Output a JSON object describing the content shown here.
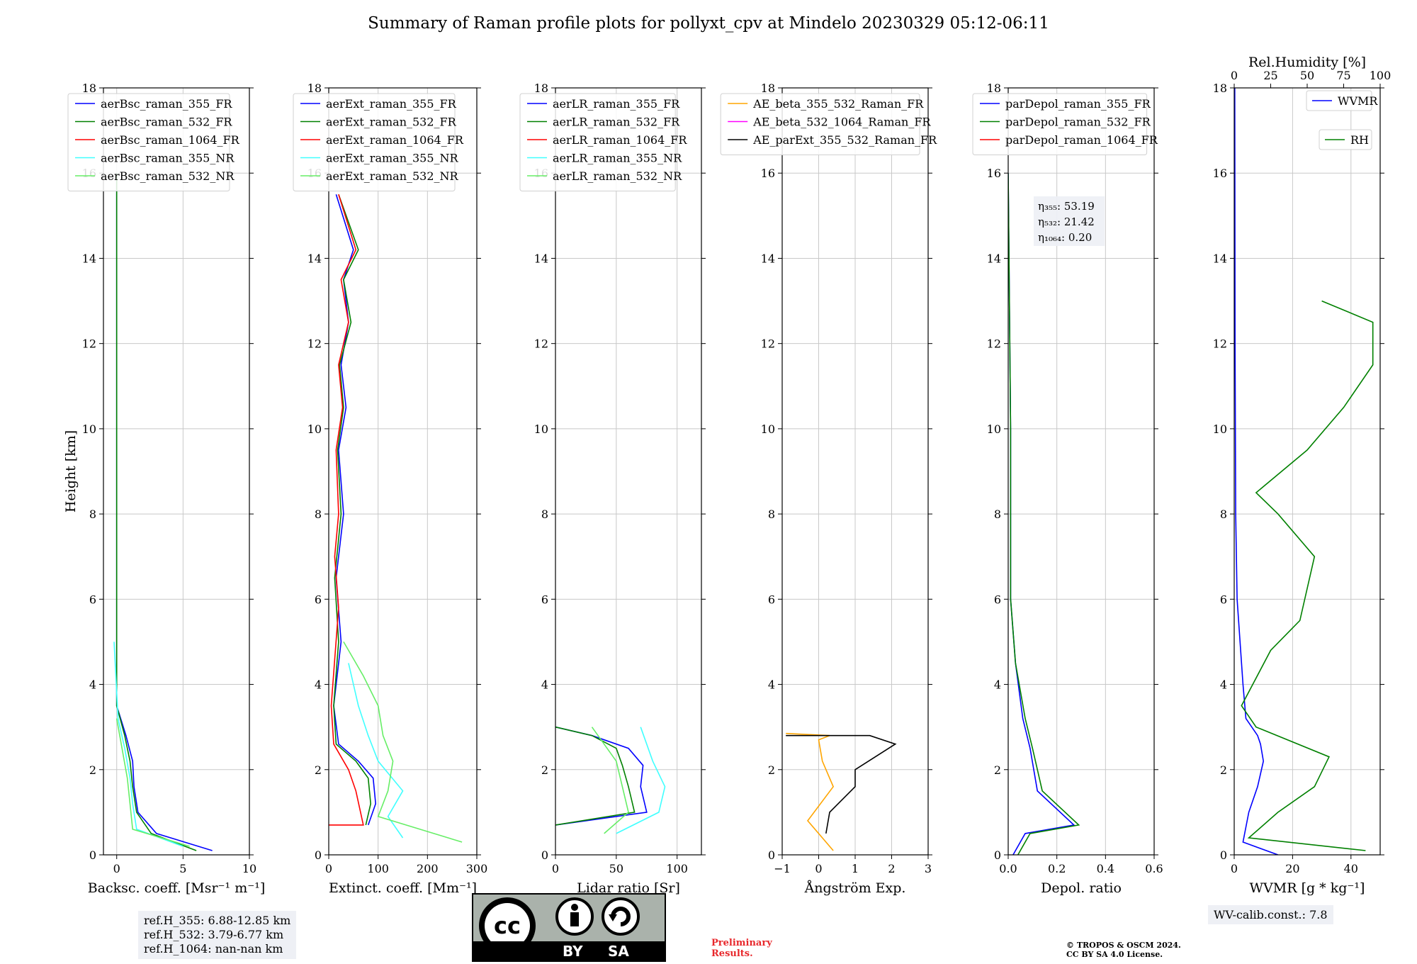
{
  "title": "Summary of Raman profile plots for pollyxt_cpv at Mindelo 20230329 05:12-06:11",
  "ref_box": [
    "ref.H_355: 6.88-12.85 km",
    "ref.H_532: 3.79-6.77 km",
    "ref.H_1064: nan-nan km"
  ],
  "wv_box": "WV-calib.const.: 7.8",
  "preliminary": [
    "Preliminary",
    "Results."
  ],
  "copyright": [
    "© TROPOS & OSCM 2024.",
    "CC BY SA 4.0 License."
  ],
  "license_logo": {
    "by": "BY",
    "sa": "SA"
  },
  "chart_data": [
    {
      "type": "line",
      "xlabel": "Backsc. coeff. [Msr⁻¹ m⁻¹]",
      "ylabel": "Height [km]",
      "xlim": [
        -1,
        10
      ],
      "ylim": [
        0,
        18
      ],
      "xticks": [
        0,
        5,
        10
      ],
      "yticks": [
        0,
        2,
        4,
        6,
        8,
        10,
        12,
        14,
        16,
        18
      ],
      "grid": true,
      "legend": "top-left",
      "series": [
        {
          "name": "aerBsc_raman_355_FR",
          "color": "#0000ff",
          "x": [
            7.2,
            3.0,
            1.6,
            1.3,
            1.2,
            0.7,
            0.0,
            0.0,
            0.0,
            0.0
          ],
          "y": [
            0.1,
            0.5,
            1.0,
            1.6,
            2.2,
            2.8,
            3.5,
            8.0,
            13.0,
            16.0
          ]
        },
        {
          "name": "aerBsc_raman_532_FR",
          "color": "#008000",
          "x": [
            6.0,
            2.6,
            1.5,
            1.2,
            1.0,
            0.6,
            0.0,
            0.0,
            0.0,
            0.0
          ],
          "y": [
            0.1,
            0.5,
            1.0,
            1.6,
            2.2,
            2.8,
            3.5,
            8.0,
            13.0,
            16.0
          ]
        },
        {
          "name": "aerBsc_raman_1064_FR",
          "color": "#ff0000",
          "x": [],
          "y": []
        },
        {
          "name": "aerBsc_raman_355_NR",
          "color": "#40ffff",
          "x": [
            5.0,
            1.5,
            1.2,
            1.0,
            0.6,
            0.1,
            -0.2
          ],
          "y": [
            0.2,
            0.6,
            1.2,
            1.8,
            2.5,
            3.2,
            5.0
          ]
        },
        {
          "name": "aerBsc_raman_532_NR",
          "color": "#66ee66",
          "x": [
            5.5,
            1.2,
            1.0,
            0.8,
            0.4,
            0.0
          ],
          "y": [
            0.2,
            0.6,
            1.2,
            1.8,
            2.5,
            3.2
          ]
        }
      ]
    },
    {
      "type": "line",
      "xlabel": "Extinct. coeff. [Mm⁻¹]",
      "xlim": [
        0,
        300
      ],
      "ylim": [
        0,
        18
      ],
      "xticks": [
        0,
        100,
        200,
        300
      ],
      "yticks": [
        0,
        2,
        4,
        6,
        8,
        10,
        12,
        14,
        16,
        18
      ],
      "grid": true,
      "legend": "top-left",
      "series": [
        {
          "name": "aerExt_raman_355_FR",
          "color": "#0000ff",
          "x": [
            80,
            95,
            90,
            60,
            20,
            10,
            25,
            15,
            30,
            20,
            35,
            25,
            40,
            30,
            50,
            15
          ],
          "y": [
            0.7,
            1.2,
            1.8,
            2.2,
            2.6,
            3.5,
            5.0,
            6.5,
            8.0,
            9.5,
            10.5,
            11.5,
            12.5,
            13.5,
            14.2,
            15.5
          ]
        },
        {
          "name": "aerExt_raman_532_FR",
          "color": "#008000",
          "x": [
            75,
            85,
            80,
            55,
            15,
            10,
            20,
            12,
            25,
            18,
            30,
            22,
            45,
            30,
            60,
            20
          ],
          "y": [
            0.7,
            1.2,
            1.8,
            2.2,
            2.6,
            3.5,
            5.0,
            6.5,
            8.0,
            9.5,
            10.5,
            11.5,
            12.5,
            13.5,
            14.2,
            15.5
          ]
        },
        {
          "name": "aerExt_raman_1064_FR",
          "color": "#ff0000",
          "x": [
            0,
            70,
            55,
            40,
            10,
            5,
            20,
            12,
            20,
            15,
            28,
            20,
            40,
            25,
            55,
            20
          ],
          "y": [
            0.7,
            0.7,
            1.5,
            2.0,
            2.6,
            3.5,
            5.8,
            7.0,
            8.0,
            9.5,
            10.5,
            11.5,
            12.5,
            13.5,
            14.2,
            15.5
          ]
        },
        {
          "name": "aerExt_raman_355_NR",
          "color": "#40ffff",
          "x": [
            150,
            120,
            150,
            100,
            80,
            60,
            40
          ],
          "y": [
            0.4,
            0.9,
            1.5,
            2.2,
            2.8,
            3.5,
            4.5
          ]
        },
        {
          "name": "aerExt_raman_532_NR",
          "color": "#66ee66",
          "x": [
            270,
            100,
            120,
            130,
            110,
            100,
            70,
            30
          ],
          "y": [
            0.3,
            0.9,
            1.5,
            2.2,
            2.8,
            3.5,
            4.2,
            5.0
          ]
        }
      ]
    },
    {
      "type": "line",
      "xlabel": "Lidar ratio [Sr]",
      "xlim": [
        0,
        120
      ],
      "ylim": [
        0,
        18
      ],
      "xticks": [
        0,
        50,
        100
      ],
      "yticks": [
        0,
        2,
        4,
        6,
        8,
        10,
        12,
        14,
        16,
        18
      ],
      "grid": true,
      "legend": "top-left",
      "series": [
        {
          "name": "aerLR_raman_355_FR",
          "color": "#0000ff",
          "x": [
            0,
            75,
            70,
            72,
            60,
            30,
            0
          ],
          "y": [
            0.7,
            1.0,
            1.6,
            2.1,
            2.5,
            2.8,
            3.0
          ]
        },
        {
          "name": "aerLR_raman_532_FR",
          "color": "#008000",
          "x": [
            0,
            65,
            60,
            55,
            50,
            30,
            0
          ],
          "y": [
            0.7,
            1.0,
            1.6,
            2.1,
            2.5,
            2.8,
            3.0
          ]
        },
        {
          "name": "aerLR_raman_1064_FR",
          "color": "#ff0000",
          "x": [],
          "y": []
        },
        {
          "name": "aerLR_raman_355_NR",
          "color": "#40ffff",
          "x": [
            50,
            85,
            90,
            80,
            70
          ],
          "y": [
            0.5,
            1.0,
            1.6,
            2.2,
            3.0
          ]
        },
        {
          "name": "aerLR_raman_532_NR",
          "color": "#66ee66",
          "x": [
            40,
            60,
            55,
            50,
            30
          ],
          "y": [
            0.5,
            1.0,
            1.6,
            2.2,
            3.0
          ]
        }
      ]
    },
    {
      "type": "line",
      "xlabel": "Ångström Exp.",
      "xlim": [
        -1,
        3
      ],
      "ylim": [
        0,
        18
      ],
      "xticks": [
        -1,
        0,
        1,
        2,
        3
      ],
      "yticks": [
        0,
        2,
        4,
        6,
        8,
        10,
        12,
        14,
        16,
        18
      ],
      "grid": true,
      "legend": "top-right",
      "series": [
        {
          "name": "AE_beta_355_532_Raman_FR",
          "color": "#ffa500",
          "x": [
            0.4,
            0.1,
            -0.3,
            0.4,
            0.1,
            0.0,
            0.3,
            -0.9
          ],
          "y": [
            0.1,
            0.4,
            0.8,
            1.6,
            2.2,
            2.7,
            2.8,
            2.85
          ]
        },
        {
          "name": "AE_beta_532_1064_Raman_FR",
          "color": "#ff00ff",
          "x": [],
          "y": []
        },
        {
          "name": "AE_parExt_355_532_Raman_FR",
          "color": "#000000",
          "x": [
            0.2,
            0.3,
            1.0,
            1.0,
            2.1,
            1.4,
            -0.9
          ],
          "y": [
            0.5,
            1.0,
            1.6,
            2.0,
            2.6,
            2.8,
            2.8
          ]
        }
      ]
    },
    {
      "type": "line",
      "xlabel": "Depol. ratio",
      "xlim": [
        0,
        0.6
      ],
      "ylim": [
        0,
        18
      ],
      "xticks": [
        0.0,
        0.2,
        0.4,
        0.6
      ],
      "xticklabels": [
        "0.0",
        "0.2",
        "0.4",
        "0.6"
      ],
      "yticks": [
        0,
        2,
        4,
        6,
        8,
        10,
        12,
        14,
        16,
        18
      ],
      "grid": true,
      "legend": "top-left",
      "annotation": [
        "η₃₅₅: 53.19",
        "η₅₃₂: 21.42",
        "η₁₀₆₄: 0.20"
      ],
      "series": [
        {
          "name": "parDepol_raman_355_FR",
          "color": "#0000ff",
          "x": [
            0.02,
            0.07,
            0.27,
            0.12,
            0.09,
            0.06,
            0.03,
            0.01,
            0.01,
            0.0
          ],
          "y": [
            0.0,
            0.5,
            0.7,
            1.5,
            2.5,
            3.2,
            4.5,
            6.0,
            10.0,
            16.0
          ]
        },
        {
          "name": "parDepol_raman_532_FR",
          "color": "#008000",
          "x": [
            0.04,
            0.09,
            0.29,
            0.14,
            0.1,
            0.07,
            0.03,
            0.01,
            0.01,
            0.0
          ],
          "y": [
            0.0,
            0.5,
            0.7,
            1.5,
            2.5,
            3.2,
            4.5,
            6.0,
            10.0,
            16.0
          ]
        },
        {
          "name": "parDepol_raman_1064_FR",
          "color": "#ff0000",
          "x": [],
          "y": []
        }
      ]
    },
    {
      "type": "line",
      "xlabel": "WVMR [g * kg⁻¹]",
      "x2label": "Rel.Humidity [%]",
      "xlim": [
        0,
        50
      ],
      "x2lim": [
        0,
        100
      ],
      "ylim": [
        0,
        18
      ],
      "xticks": [
        0,
        20,
        40
      ],
      "x2ticks": [
        0,
        25,
        50,
        75,
        100
      ],
      "yticks": [
        0,
        2,
        4,
        6,
        8,
        10,
        12,
        14,
        16,
        18
      ],
      "grid": true,
      "legend": "top-right",
      "series": [
        {
          "name": "WVMR",
          "color": "#0000ff",
          "axis": "bottom",
          "x": [
            15,
            3,
            5,
            8,
            10,
            9,
            8,
            4,
            3,
            1,
            0.5,
            0.3,
            0.2
          ],
          "y": [
            0.0,
            0.3,
            1.0,
            1.6,
            2.2,
            2.6,
            2.8,
            3.2,
            4.0,
            6.0,
            8.0,
            12.0,
            18.0
          ]
        },
        {
          "name": "RH",
          "color": "#008000",
          "axis": "top",
          "x": [
            90,
            10,
            30,
            55,
            65,
            15,
            5,
            25,
            45,
            55,
            30,
            15,
            50,
            75,
            95,
            95,
            60
          ],
          "y": [
            0.1,
            0.4,
            1.0,
            1.6,
            2.3,
            3.0,
            3.5,
            4.8,
            5.5,
            7.0,
            8.0,
            8.5,
            9.5,
            10.5,
            11.5,
            12.5,
            13.0
          ]
        }
      ]
    }
  ]
}
